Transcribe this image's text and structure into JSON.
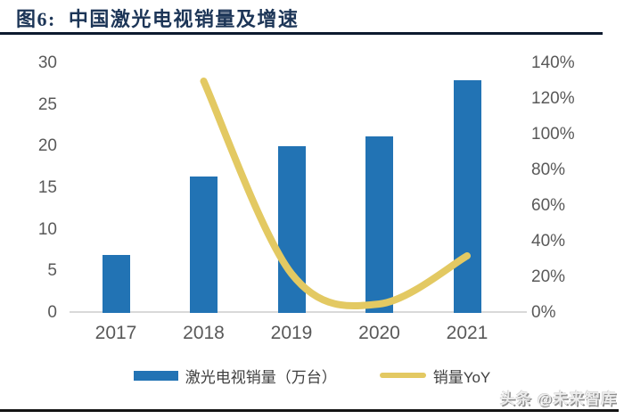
{
  "title": "图6:  中国激光电视销量及增速",
  "watermark": "头条 @未来智库",
  "legend": {
    "bar_label": "激光电视销量（万台）",
    "line_label": "销量YoY"
  },
  "chart_data": {
    "type": "bar",
    "title": "中国激光电视销量及增速",
    "categories": [
      "2017",
      "2018",
      "2019",
      "2020",
      "2021"
    ],
    "series": [
      {
        "name": "激光电视销量（万台）",
        "type": "bar",
        "axis": "left",
        "values": [
          7,
          16.4,
          20,
          21.2,
          28
        ],
        "color": "#2273b4"
      },
      {
        "name": "销量YoY",
        "type": "line",
        "axis": "right",
        "unit": "%",
        "values": [
          null,
          130,
          22,
          5,
          32
        ],
        "color": "#e3c962"
      }
    ],
    "left_axis": {
      "min": 0,
      "max": 30,
      "ticks": [
        0,
        5,
        10,
        15,
        20,
        25,
        30
      ]
    },
    "right_axis": {
      "min": 0,
      "max": 140,
      "ticks": [
        0,
        20,
        40,
        60,
        80,
        100,
        120,
        140
      ],
      "tick_suffix": "%"
    },
    "grid": false,
    "legend_position": "bottom"
  },
  "colors": {
    "bar": "#2273b4",
    "line": "#e3c962",
    "title": "#1c3557",
    "axis_text": "#595959",
    "axis_line": "#d9d9d9",
    "rule": "#0d1a2e"
  }
}
